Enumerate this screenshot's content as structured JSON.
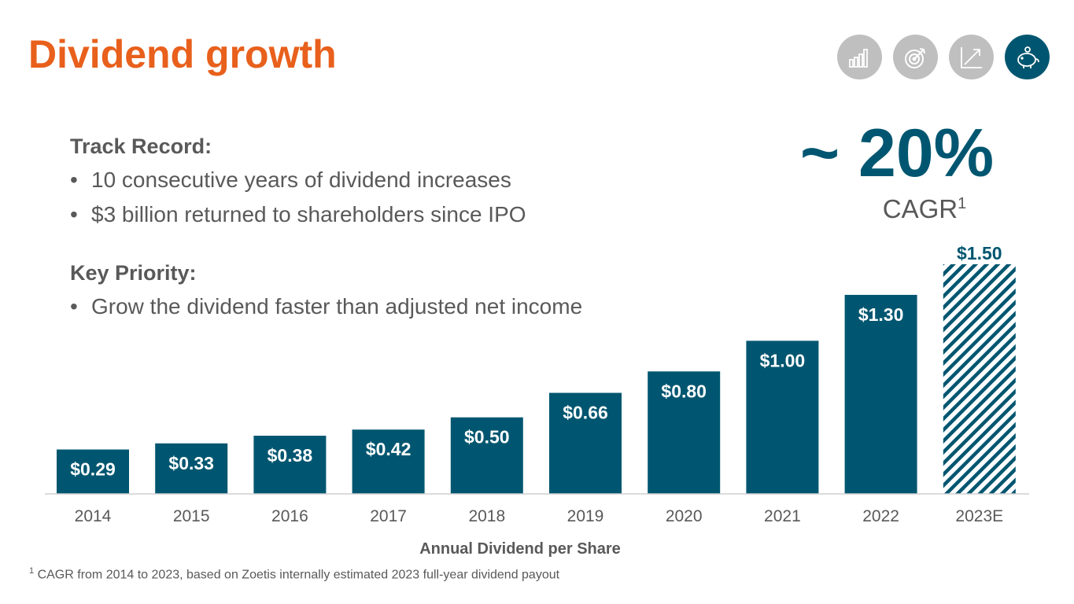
{
  "title": "Dividend growth",
  "nav_icons": [
    {
      "name": "bar-chart-icon",
      "active": false
    },
    {
      "name": "target-icon",
      "active": false
    },
    {
      "name": "trend-arrow-icon",
      "active": false
    },
    {
      "name": "piggy-bank-icon",
      "active": true
    }
  ],
  "track_record": {
    "heading": "Track Record:",
    "bullets": [
      "10 consecutive years of dividend increases",
      "$3 billion returned to shareholders since IPO"
    ]
  },
  "key_priority": {
    "heading": "Key Priority:",
    "bullets": [
      "Grow the dividend faster than adjusted net income"
    ]
  },
  "cagr": {
    "value": "~ 20%",
    "label": "CAGR",
    "footnote_marker": "1"
  },
  "footnote": {
    "marker": "1",
    "text": "CAGR from 2014 to 2023, based on Zoetis internally estimated 2023 full-year dividend payout"
  },
  "colors": {
    "title": "#E8601C",
    "bar": "#005670",
    "text": "#595959",
    "icon_inactive": "#BFBFBF"
  },
  "chart_data": {
    "type": "bar",
    "xlabel": "Annual Dividend per Share",
    "ylabel": "",
    "categories": [
      "2014",
      "2015",
      "2016",
      "2017",
      "2018",
      "2019",
      "2020",
      "2021",
      "2022",
      "2023E"
    ],
    "values": [
      0.29,
      0.33,
      0.38,
      0.42,
      0.5,
      0.66,
      0.8,
      1.0,
      1.3,
      1.5
    ],
    "labels": [
      "$0.29",
      "$0.33",
      "$0.38",
      "$0.42",
      "$0.50",
      "$0.66",
      "$0.80",
      "$1.00",
      "$1.30",
      "$1.50"
    ],
    "estimated": [
      false,
      false,
      false,
      false,
      false,
      false,
      false,
      false,
      false,
      true
    ],
    "ylim": [
      0,
      1.5
    ],
    "grid": false,
    "legend": "none"
  }
}
